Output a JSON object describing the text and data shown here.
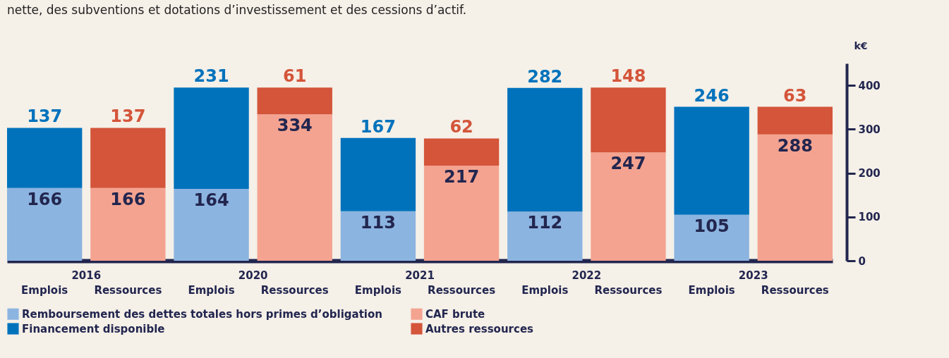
{
  "chart_data": {
    "type": "bar",
    "stacked": true,
    "subtitle": "nette, des subventions et dotations d’investissement et des cessions d’actif.",
    "ylabel": "k€",
    "categories": [
      "Emplois",
      "Ressources",
      "Emplois",
      "Ressources",
      "Emplois",
      "Ressources",
      "Emplois",
      "Ressources",
      "Emplois",
      "Ressources"
    ],
    "series": [
      {
        "name": "Remboursement des dettes totales hors primes d’obligation",
        "color": "#8cb4e0",
        "values": [
          166,
          null,
          164,
          null,
          113,
          null,
          112,
          null,
          105,
          null
        ]
      },
      {
        "name": "CAF brute",
        "color": "#f4a390",
        "values": [
          null,
          166,
          null,
          334,
          null,
          217,
          null,
          247,
          null,
          288
        ]
      },
      {
        "name": "Financement disponible",
        "color": "#0072bc",
        "values": [
          137,
          null,
          231,
          null,
          167,
          null,
          282,
          null,
          246,
          null
        ]
      },
      {
        "name": "Autres ressources",
        "color": "#d4553a",
        "values": [
          null,
          137,
          null,
          61,
          null,
          62,
          null,
          148,
          null,
          63
        ]
      }
    ],
    "annotations": [
      "2016",
      "2020",
      "2021",
      "2022",
      "2023"
    ],
    "ylim": [
      0,
      450
    ],
    "yticks": [
      0,
      100,
      200,
      300,
      400
    ],
    "data_labels": true,
    "grid": false,
    "legend": "bottom left"
  }
}
